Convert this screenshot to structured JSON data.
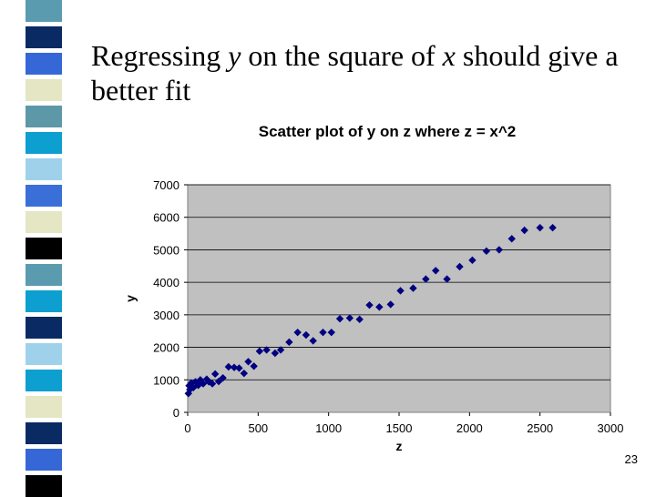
{
  "slide": {
    "title_parts": [
      {
        "text": "Regressing ",
        "italic": false
      },
      {
        "text": "y",
        "italic": true
      },
      {
        "text": " on the square of ",
        "italic": false
      },
      {
        "text": "x",
        "italic": true
      },
      {
        "text": " should give a better fit",
        "italic": false
      }
    ],
    "page_number": "23"
  },
  "colors": {
    "stripe": [
      "#5a9bb0",
      "#ffffff",
      "#0a2a63",
      "#ffffff",
      "#3667d6",
      "#ffffff",
      "#e4e6c4",
      "#ffffff",
      "#5c98a8",
      "#ffffff",
      "#0c9fd0",
      "#ffffff",
      "#9fd2ea",
      "#ffffff",
      "#3a6fd8",
      "#ffffff",
      "#e4e6c4",
      "#ffffff",
      "#000000",
      "#ffffff",
      "#5a9bb0",
      "#ffffff",
      "#0c9fd0",
      "#ffffff",
      "#0a2a63",
      "#ffffff",
      "#9fd2ea",
      "#ffffff",
      "#0c9fd0",
      "#ffffff",
      "#e4e6c4",
      "#ffffff",
      "#0a2a63",
      "#ffffff",
      "#3667d6",
      "#ffffff",
      "#000000"
    ],
    "plot_bg": "#c0c0c0",
    "marker": "#000080"
  },
  "chart_data": {
    "type": "scatter",
    "title": "Scatter plot of y on z where z = x^2",
    "xlabel": "z",
    "ylabel": "y",
    "xlim": [
      0,
      3000
    ],
    "ylim": [
      0,
      7000
    ],
    "xticks": [
      0,
      500,
      1000,
      1500,
      2000,
      2500,
      3000
    ],
    "yticks": [
      0,
      1000,
      2000,
      3000,
      4000,
      5000,
      6000,
      7000
    ],
    "grid": "horizontal",
    "legend": "none",
    "marker": "diamond",
    "points": [
      [
        5,
        580
      ],
      [
        10,
        820
      ],
      [
        15,
        700
      ],
      [
        25,
        900
      ],
      [
        40,
        760
      ],
      [
        55,
        940
      ],
      [
        75,
        830
      ],
      [
        90,
        1000
      ],
      [
        110,
        880
      ],
      [
        135,
        1020
      ],
      [
        150,
        940
      ],
      [
        175,
        880
      ],
      [
        195,
        1180
      ],
      [
        220,
        950
      ],
      [
        250,
        1060
      ],
      [
        290,
        1400
      ],
      [
        330,
        1380
      ],
      [
        365,
        1360
      ],
      [
        400,
        1200
      ],
      [
        430,
        1560
      ],
      [
        470,
        1420
      ],
      [
        510,
        1880
      ],
      [
        560,
        1920
      ],
      [
        620,
        1820
      ],
      [
        660,
        1920
      ],
      [
        720,
        2160
      ],
      [
        780,
        2460
      ],
      [
        840,
        2380
      ],
      [
        890,
        2200
      ],
      [
        960,
        2460
      ],
      [
        1020,
        2460
      ],
      [
        1080,
        2880
      ],
      [
        1150,
        2900
      ],
      [
        1220,
        2860
      ],
      [
        1290,
        3300
      ],
      [
        1360,
        3240
      ],
      [
        1440,
        3320
      ],
      [
        1510,
        3740
      ],
      [
        1600,
        3820
      ],
      [
        1690,
        4100
      ],
      [
        1760,
        4360
      ],
      [
        1840,
        4100
      ],
      [
        1930,
        4480
      ],
      [
        2020,
        4680
      ],
      [
        2120,
        4960
      ],
      [
        2210,
        5000
      ],
      [
        2300,
        5340
      ],
      [
        2390,
        5600
      ],
      [
        2500,
        5680
      ],
      [
        2590,
        5680
      ]
    ]
  }
}
